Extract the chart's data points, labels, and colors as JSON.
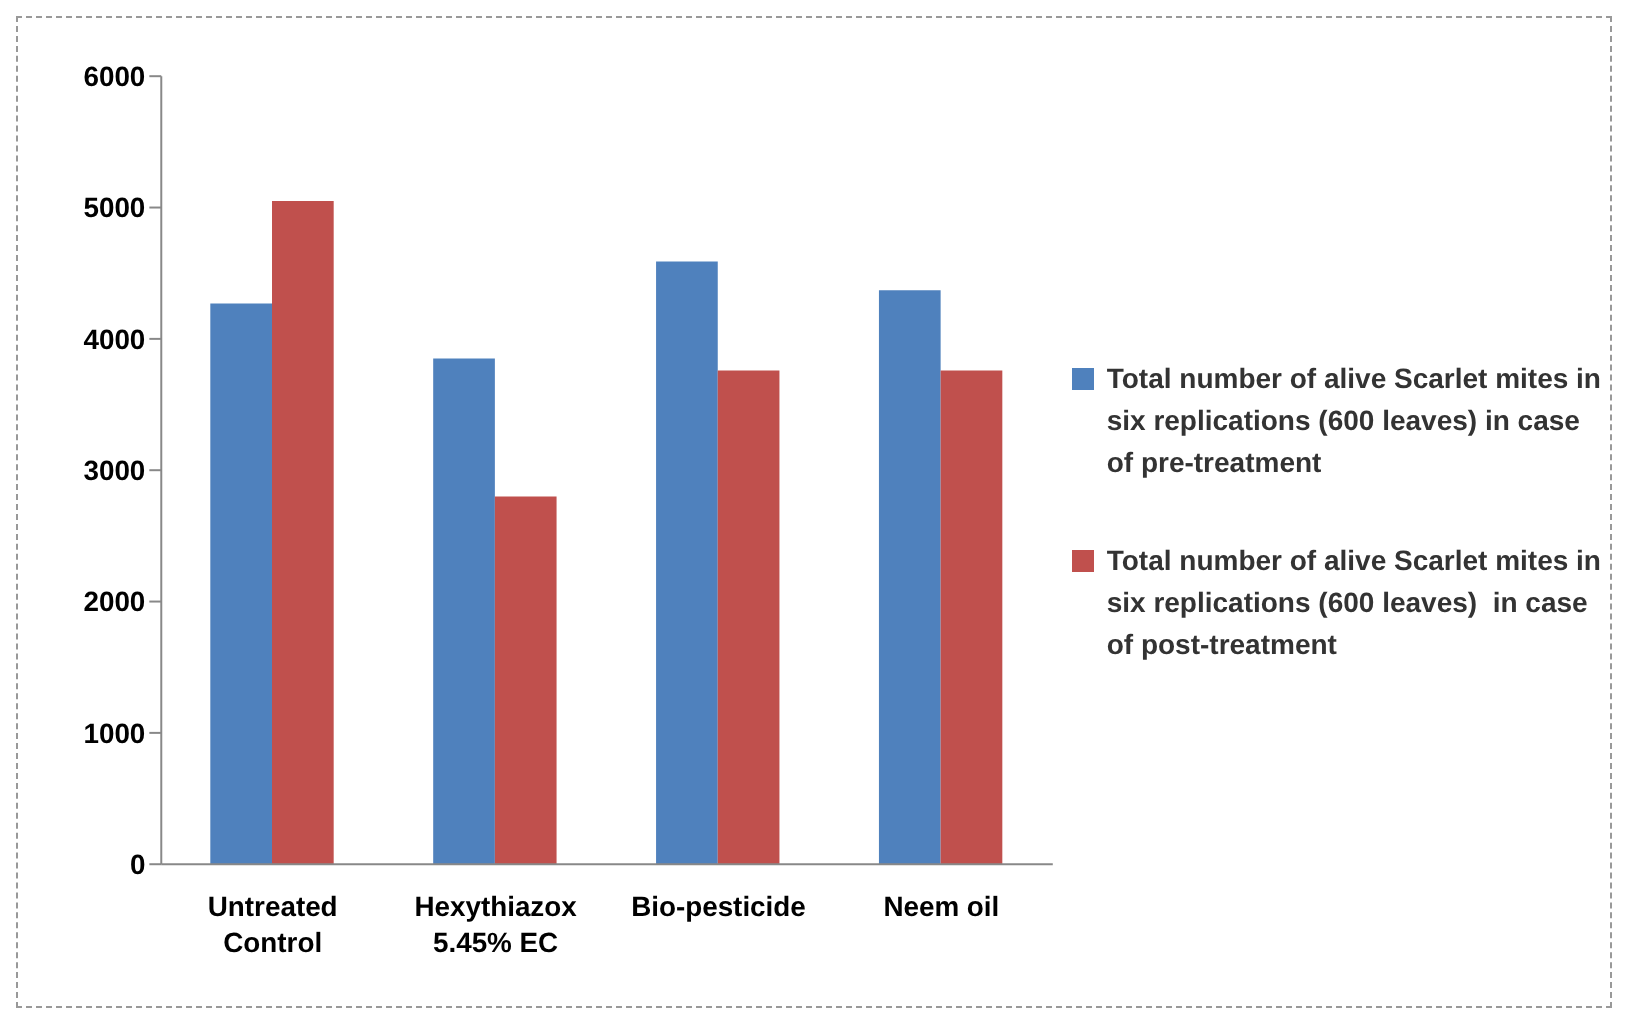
{
  "chart_data": {
    "type": "bar",
    "categories": [
      "Untreated Control",
      "Hexythiazox 5.45% EC",
      "Bio-pesticide",
      "Neem oil"
    ],
    "series": [
      {
        "name": "Total number of alive Scarlet mites in six replications (600 leaves) in case of pre-treatment",
        "color": "#4f81bd",
        "values": [
          4270,
          3850,
          4590,
          4370
        ]
      },
      {
        "name": "Total number of alive Scarlet mites in six replications (600 leaves)  in case of post-treatment",
        "color": "#c0504d",
        "values": [
          5050,
          2800,
          3760,
          3760
        ]
      }
    ],
    "ylim": [
      0,
      6000
    ],
    "yticks": [
      0,
      1000,
      2000,
      3000,
      4000,
      5000,
      6000
    ],
    "grid": false,
    "legend": "right"
  }
}
